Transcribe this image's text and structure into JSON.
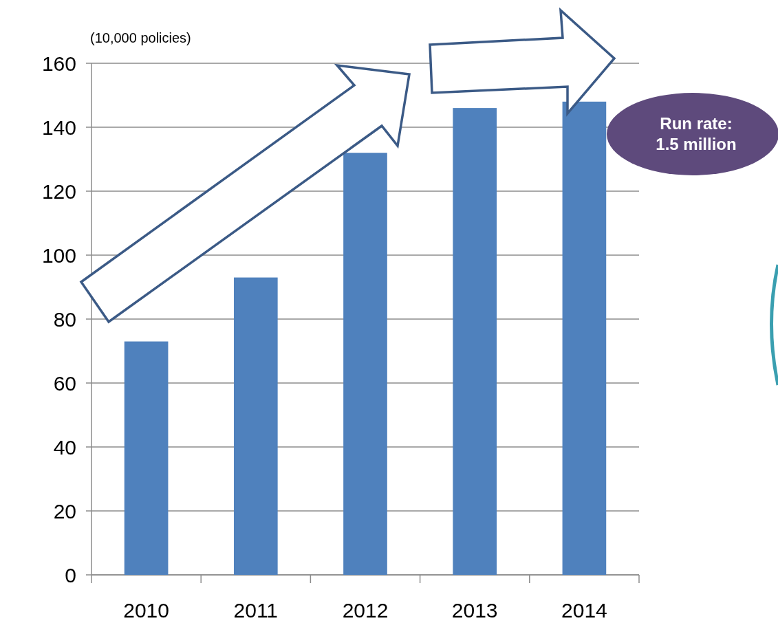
{
  "chart_data": {
    "type": "bar",
    "ylabel": "(10,000 policies)",
    "categories": [
      "2010",
      "2011",
      "2012",
      "2013",
      "2014"
    ],
    "values": [
      73,
      93,
      132,
      146,
      148
    ],
    "color": "#4f81bd",
    "ylim": [
      0,
      160
    ],
    "yticks": [
      0,
      20,
      40,
      60,
      80,
      100,
      120,
      140,
      160
    ],
    "grid": "y",
    "annotations": [
      "Run rate:\n1.5 million"
    ]
  }
}
